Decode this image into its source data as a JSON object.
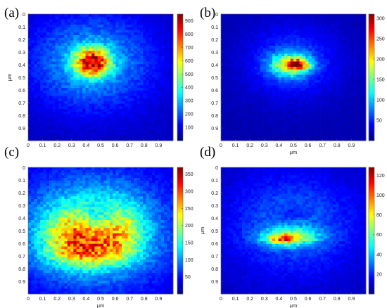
{
  "chart_data": [
    {
      "type": "heatmap",
      "panel_label": "(a)",
      "colormap": "jet",
      "xlabel": "",
      "ylabel": "μm",
      "x_ticks": [
        "0",
        "0.1",
        "0.2",
        "0.3",
        "0.4",
        "0.5",
        "0.6",
        "0.7",
        "0.8",
        "0.9"
      ],
      "y_ticks": [
        "0",
        "0.1",
        "0.2",
        "0.3",
        "0.4",
        "0.5",
        "0.6",
        "0.7",
        "0.8",
        "0.9"
      ],
      "extent_um": [
        0,
        1
      ],
      "colorbar_ticks": [
        100,
        200,
        300,
        400,
        500,
        600,
        700,
        800,
        900
      ],
      "zlim": [
        0,
        950
      ],
      "background_level": 60,
      "blobs": [
        {
          "x": 0.44,
          "y": 0.38,
          "sx": 0.28,
          "sy": 0.25,
          "amp": 240
        },
        {
          "x": 0.44,
          "y": 0.38,
          "sx": 0.085,
          "sy": 0.075,
          "amp": 650
        }
      ]
    },
    {
      "type": "heatmap",
      "panel_label": "(b)",
      "colormap": "jet",
      "xlabel": "μm",
      "ylabel": "",
      "x_ticks": [
        "0",
        "0.1",
        "0.2",
        "0.3",
        "0.4",
        "0.5",
        "0.6",
        "0.7",
        "0.8",
        "0.9"
      ],
      "y_ticks": [
        "0",
        "0.1",
        "0.2",
        "0.3",
        "0.4",
        "0.5",
        "0.6",
        "0.7",
        "0.8",
        "0.9"
      ],
      "extent_um": [
        0,
        1
      ],
      "colorbar_ticks": [
        50,
        100,
        150,
        200,
        250,
        300
      ],
      "zlim": [
        0,
        310
      ],
      "background_level": 15,
      "blobs": [
        {
          "x": 0.5,
          "y": 0.38,
          "sx": 0.22,
          "sy": 0.2,
          "amp": 45
        },
        {
          "x": 0.47,
          "y": 0.4,
          "sx": 0.1,
          "sy": 0.07,
          "amp": 110
        },
        {
          "x": 0.52,
          "y": 0.4,
          "sx": 0.06,
          "sy": 0.03,
          "amp": 170
        }
      ]
    },
    {
      "type": "heatmap",
      "panel_label": "(c)",
      "colormap": "jet",
      "xlabel": "μm",
      "ylabel": "",
      "x_ticks": [
        "0",
        "0.1",
        "0.2",
        "0.3",
        "0.4",
        "0.5",
        "0.6",
        "0.7",
        "0.8",
        "0.9"
      ],
      "y_ticks": [
        "0",
        "0.1",
        "0.2",
        "0.3",
        "0.4",
        "0.5",
        "0.6",
        "0.7",
        "0.8",
        "0.9"
      ],
      "extent_um": [
        0,
        1
      ],
      "colorbar_ticks": [
        50,
        100,
        150,
        200,
        250,
        300,
        350
      ],
      "zlim": [
        0,
        370
      ],
      "background_level": 30,
      "blobs": [
        {
          "x": 0.45,
          "y": 0.5,
          "sx": 0.33,
          "sy": 0.28,
          "amp": 150
        },
        {
          "x": 0.32,
          "y": 0.55,
          "sx": 0.14,
          "sy": 0.14,
          "amp": 120
        },
        {
          "x": 0.62,
          "y": 0.5,
          "sx": 0.11,
          "sy": 0.14,
          "amp": 100
        },
        {
          "x": 0.45,
          "y": 0.68,
          "sx": 0.2,
          "sy": 0.07,
          "amp": 70
        },
        {
          "x": 0.5,
          "y": 0.4,
          "sx": 0.1,
          "sy": 0.08,
          "amp": -80
        }
      ]
    },
    {
      "type": "heatmap",
      "panel_label": "(d)",
      "colormap": "jet",
      "xlabel": "μm",
      "ylabel": "μm",
      "x_ticks": [
        "0",
        "0.1",
        "0.2",
        "0.3",
        "0.4",
        "0.5",
        "0.6",
        "0.7",
        "0.8",
        "0.9"
      ],
      "y_ticks": [
        "0",
        "0.1",
        "0.2",
        "0.3",
        "0.4",
        "0.5",
        "0.6",
        "0.7",
        "0.8",
        "0.9"
      ],
      "extent_um": [
        0,
        1
      ],
      "colorbar_ticks": [
        20,
        40,
        60,
        80,
        100,
        120
      ],
      "zlim": [
        0,
        128
      ],
      "background_level": 8,
      "blobs": [
        {
          "x": 0.5,
          "y": 0.45,
          "sx": 0.3,
          "sy": 0.27,
          "amp": 22
        },
        {
          "x": 0.48,
          "y": 0.55,
          "sx": 0.14,
          "sy": 0.05,
          "amp": 45
        },
        {
          "x": 0.42,
          "y": 0.57,
          "sx": 0.07,
          "sy": 0.025,
          "amp": 40
        },
        {
          "x": 0.5,
          "y": 0.36,
          "sx": 0.08,
          "sy": 0.04,
          "amp": -10
        }
      ]
    }
  ]
}
